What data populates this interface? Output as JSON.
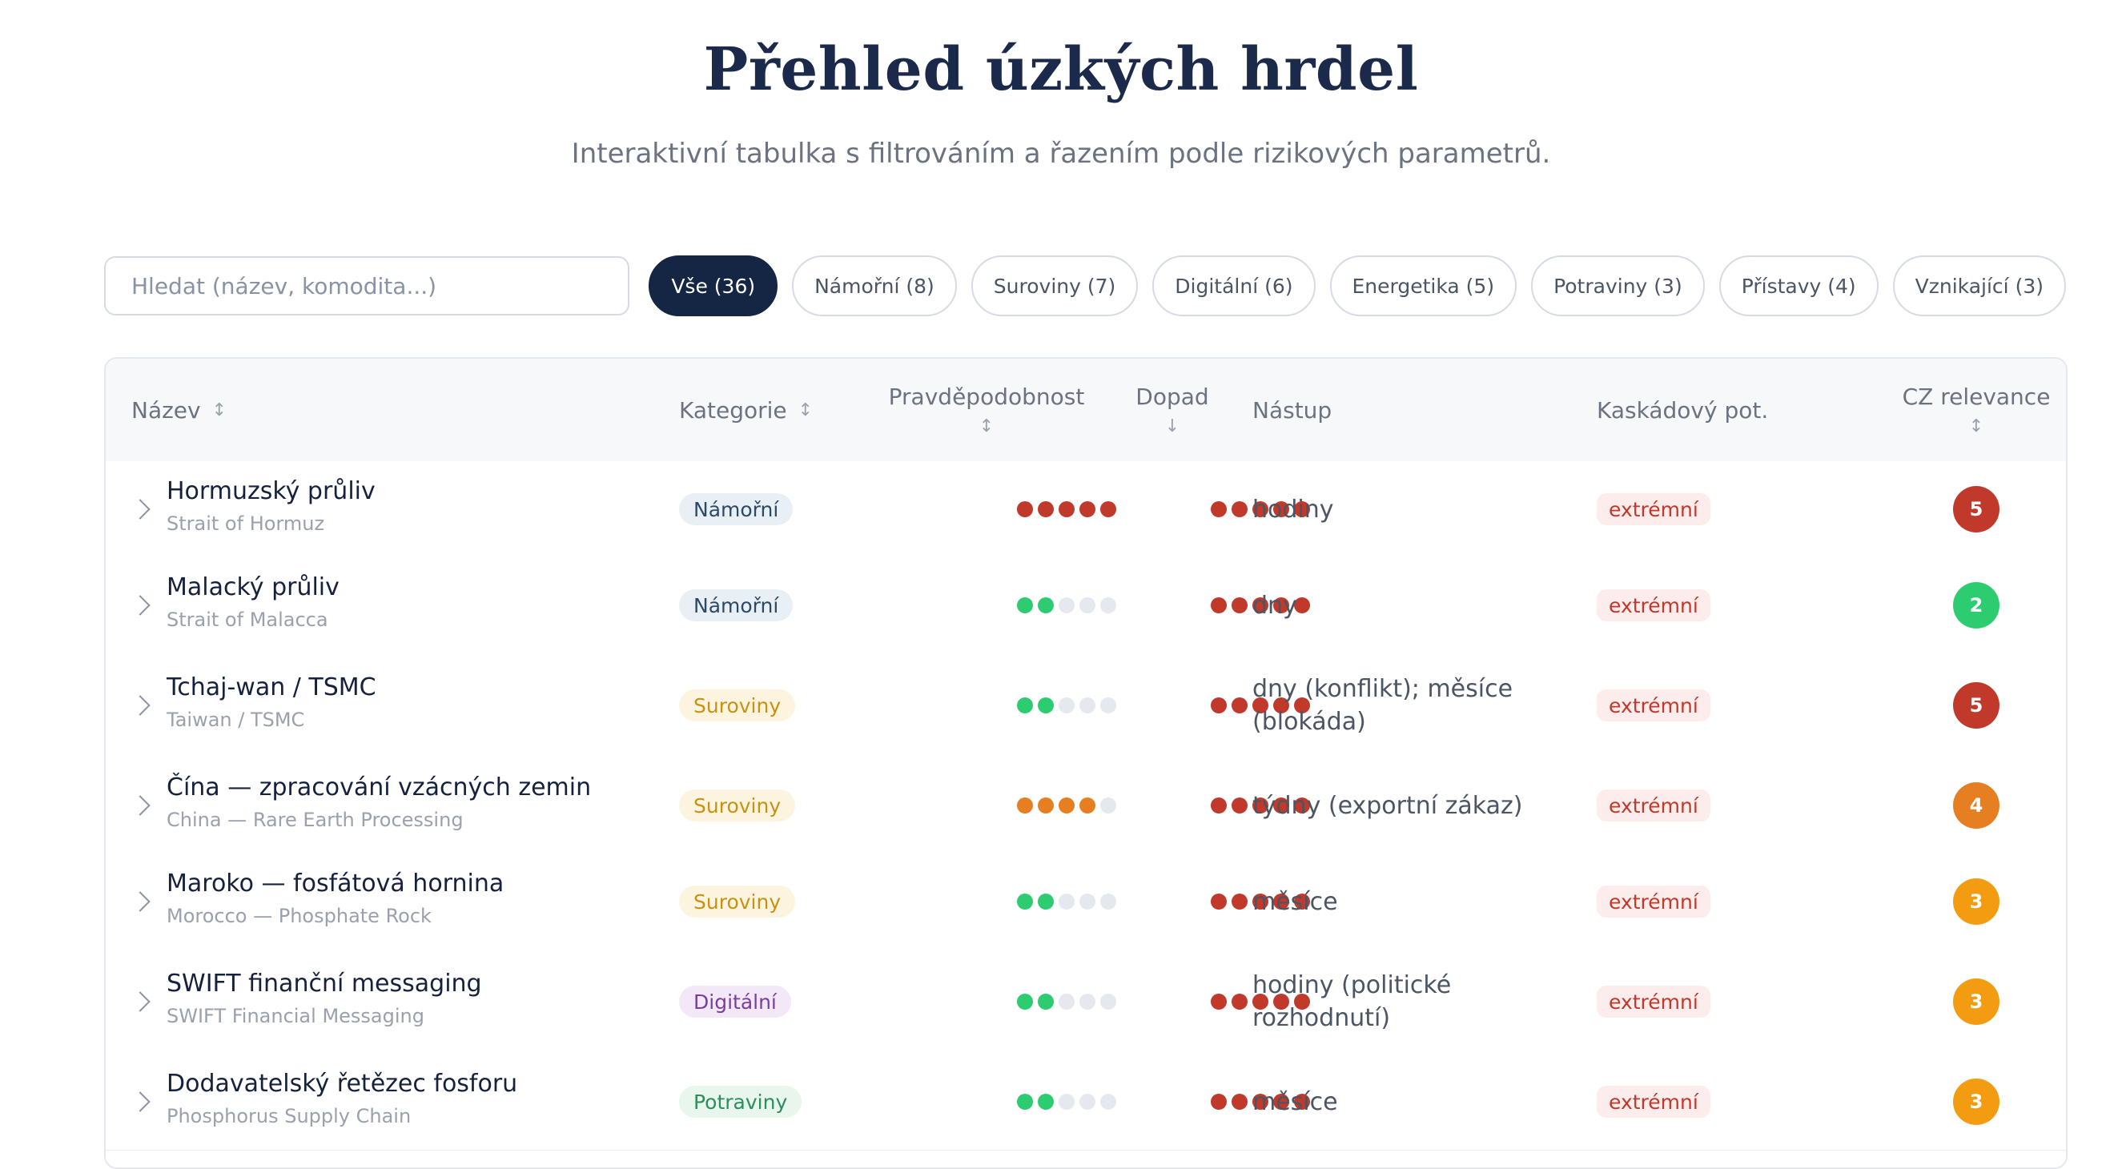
{
  "header": {
    "title": "Přehled úzkých hrdel",
    "subtitle": "Interaktivní tabulka s filtrováním a řazením podle rizikových parametrů."
  },
  "search": {
    "placeholder": "Hledat (název, komodita...)",
    "value": ""
  },
  "filters": [
    {
      "label": "Vše (36)",
      "active": true
    },
    {
      "label": "Námořní (8)",
      "active": false
    },
    {
      "label": "Suroviny (7)",
      "active": false
    },
    {
      "label": "Digitální (6)",
      "active": false
    },
    {
      "label": "Energetika (5)",
      "active": false
    },
    {
      "label": "Potraviny (3)",
      "active": false
    },
    {
      "label": "Přístavy (4)",
      "active": false
    },
    {
      "label": "Vznikající (3)",
      "active": false
    }
  ],
  "columns": {
    "name": "Název",
    "category": "Kategorie",
    "probability": "Pravděpodobnost",
    "impact": "Dopad",
    "onset": "Nástup",
    "cascade": "Kaskádový pot.",
    "cz": "CZ relevance",
    "sort_icon": "↕",
    "sorted_desc_icon": "↓"
  },
  "colors": {
    "accent_navy": "#152544",
    "dot_red": "#c0392b",
    "dot_green": "#2ecc71",
    "dot_orange": "#e67e22",
    "dot_empty": "#e5e9ef",
    "cz_5": "#c0392b",
    "cz_4": "#e67e22",
    "cz_3": "#f39c12",
    "cz_2": "#2ecc71"
  },
  "category_styles": {
    "Námořní": {
      "bg": "#e8f0f6",
      "fg": "#2c4a66"
    },
    "Suroviny": {
      "bg": "#fdf4e0",
      "fg": "#c79212"
    },
    "Digitální": {
      "bg": "#f3e8f8",
      "fg": "#7b3ea0"
    },
    "Potraviny": {
      "bg": "#e8f6ee",
      "fg": "#2a8f58"
    }
  },
  "rows": [
    {
      "name": "Hormuzský průliv",
      "name_en": "Strait of Hormuz",
      "category": "Námořní",
      "probability": 5,
      "probability_color": "red",
      "impact": 5,
      "onset": "hodiny",
      "cascade": "extrémní",
      "cz": 5
    },
    {
      "name": "Malacký průliv",
      "name_en": "Strait of Malacca",
      "category": "Námořní",
      "probability": 2,
      "probability_color": "green",
      "impact": 5,
      "onset": "dny",
      "cascade": "extrémní",
      "cz": 2
    },
    {
      "name": "Tchaj-wan / TSMC",
      "name_en": "Taiwan / TSMC",
      "category": "Suroviny",
      "probability": 2,
      "probability_color": "green",
      "impact": 5,
      "onset": "dny (konflikt); měsíce (blokáda)",
      "cascade": "extrémní",
      "cz": 5
    },
    {
      "name": "Čína — zpracování vzácných zemin",
      "name_en": "China — Rare Earth Processing",
      "category": "Suroviny",
      "probability": 4,
      "probability_color": "orange",
      "impact": 5,
      "onset": "týdny (exportní zákaz)",
      "cascade": "extrémní",
      "cz": 4
    },
    {
      "name": "Maroko — fosfátová hornina",
      "name_en": "Morocco — Phosphate Rock",
      "category": "Suroviny",
      "probability": 2,
      "probability_color": "green",
      "impact": 5,
      "onset": "měsíce",
      "cascade": "extrémní",
      "cz": 3
    },
    {
      "name": "SWIFT finanční messaging",
      "name_en": "SWIFT Financial Messaging",
      "category": "Digitální",
      "probability": 2,
      "probability_color": "green",
      "impact": 5,
      "onset": "hodiny (politické rozhodnutí)",
      "cascade": "extrémní",
      "cz": 3
    },
    {
      "name": "Dodavatelský řetězec fosforu",
      "name_en": "Phosphorus Supply Chain",
      "category": "Potraviny",
      "probability": 2,
      "probability_color": "green",
      "impact": 5,
      "onset": "měsíce",
      "cascade": "extrémní",
      "cz": 3
    }
  ]
}
